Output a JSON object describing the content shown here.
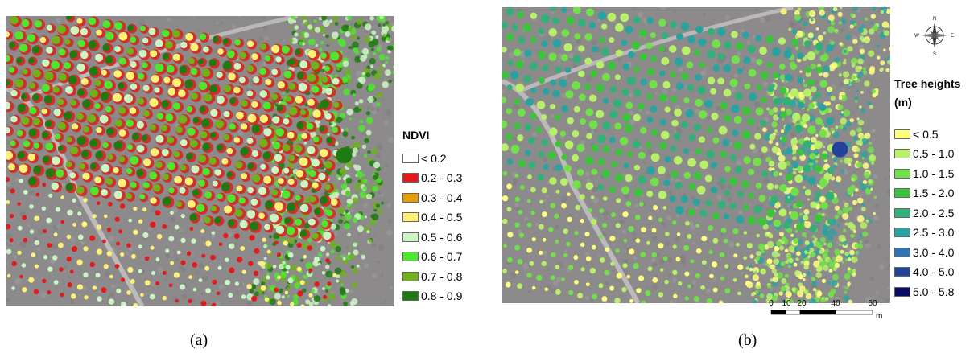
{
  "panel_a": {
    "caption": "(a)",
    "legend_title": "NDVI",
    "legend": [
      {
        "label": "< 0.2",
        "color": "#ffffff"
      },
      {
        "label": "0.2 - 0.3",
        "color": "#e31a1c"
      },
      {
        "label": "0.3 - 0.4",
        "color": "#e69f00"
      },
      {
        "label": "0.4 - 0.5",
        "color": "#fff176"
      },
      {
        "label": "0.5 - 0.6",
        "color": "#ccf5c4"
      },
      {
        "label": "0.6 - 0.7",
        "color": "#4ee62e"
      },
      {
        "label": "0.7 - 0.8",
        "color": "#6fb21b"
      },
      {
        "label": "0.8 - 0.9",
        "color": "#1f7a12"
      }
    ]
  },
  "panel_b": {
    "caption": "(b)",
    "legend_title_line1": "Tree heights",
    "legend_title_line2": "(m)",
    "legend": [
      {
        "label": "< 0.5",
        "color": "#ffff80"
      },
      {
        "label": "0.5 - 1.0",
        "color": "#b8f06a"
      },
      {
        "label": "1.0 - 1.5",
        "color": "#72e04a"
      },
      {
        "label": "1.5 - 2.0",
        "color": "#3cc43c"
      },
      {
        "label": "2.0 - 2.5",
        "color": "#33b07a"
      },
      {
        "label": "2.5 - 3.0",
        "color": "#2aa3a0"
      },
      {
        "label": "3.0 - 4.0",
        "color": "#2b74b8"
      },
      {
        "label": "4.0 - 5.0",
        "color": "#23429a"
      },
      {
        "label": "5.0 - 5.8",
        "color": "#0b0b66"
      }
    ],
    "compass": {
      "n": "N",
      "s": "S",
      "e": "E",
      "w": "W"
    },
    "scale_bar": {
      "ticks": [
        "0",
        "10",
        "20",
        "40",
        "60"
      ],
      "unit": "m"
    }
  }
}
